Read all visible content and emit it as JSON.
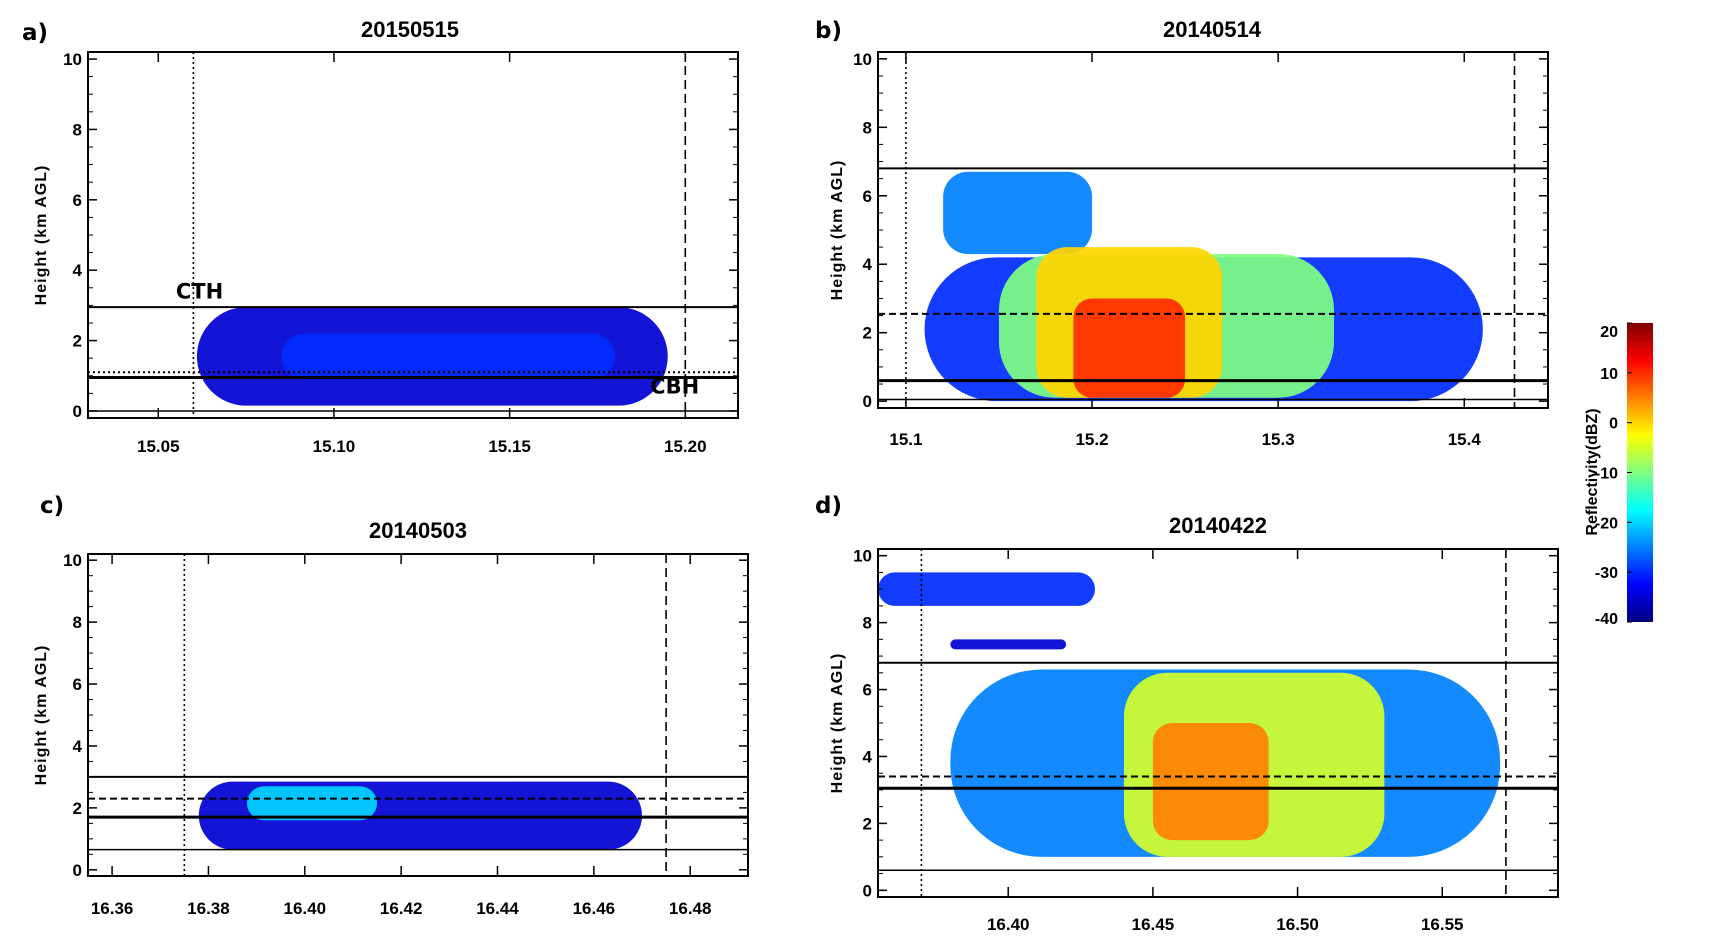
{
  "figure": {
    "colorbar": {
      "label": "Reflectivity(dBZ)",
      "ticks": [
        "20",
        "10",
        "0",
        "-10",
        "-20",
        "-30",
        "-40"
      ],
      "range": [
        -40,
        20
      ],
      "colormap": [
        "#00007f",
        "#0000ff",
        "#0080ff",
        "#00ffff",
        "#80ff80",
        "#ffff00",
        "#ff8000",
        "#ff0000",
        "#7f0000"
      ]
    }
  },
  "chart_data": [
    {
      "panel": "a)",
      "type": "heatmap",
      "title": "20150515",
      "ylabel": "Height (km AGL)",
      "xlabel": "",
      "xlim": [
        15.03,
        15.215
      ],
      "ylim": [
        -0.2,
        10.2
      ],
      "xticks": [
        "15.05",
        "15.10",
        "15.15",
        "15.20"
      ],
      "yticks": [
        "0",
        "2",
        "4",
        "6",
        "8",
        "10"
      ],
      "annotations": [
        {
          "text": "CTH",
          "x": 15.055,
          "y": 3.2
        },
        {
          "text": "CBH",
          "x": 15.19,
          "y": 0.5
        }
      ],
      "vlines": [
        {
          "x": 15.06,
          "style": "dotted"
        },
        {
          "x": 15.2,
          "style": "dashed"
        }
      ],
      "hlines": [
        {
          "y": 2.95,
          "style": "solid",
          "width": 2
        },
        {
          "y": 1.1,
          "style": "dotted",
          "width": 2
        },
        {
          "y": 0.95,
          "style": "solid",
          "width": 3
        },
        {
          "y": 0.0,
          "style": "solid",
          "width": 1.5
        }
      ],
      "clouds": [
        {
          "dbz": -35,
          "x0": 15.061,
          "x1": 15.195,
          "y0": 0.15,
          "y1": 2.95
        },
        {
          "dbz": -30,
          "x0": 15.085,
          "x1": 15.18,
          "y0": 0.9,
          "y1": 2.2
        }
      ]
    },
    {
      "panel": "b)",
      "type": "heatmap",
      "title": "20140514",
      "ylabel": "Height (km AGL)",
      "xlabel": "",
      "xlim": [
        15.085,
        15.445
      ],
      "ylim": [
        -0.2,
        10.2
      ],
      "xticks": [
        "15.1",
        "15.2",
        "15.3",
        "15.4"
      ],
      "yticks": [
        "0",
        "2",
        "4",
        "6",
        "8",
        "10"
      ],
      "annotations": [],
      "vlines": [
        {
          "x": 15.1,
          "style": "dotted"
        },
        {
          "x": 15.427,
          "style": "dashed"
        }
      ],
      "hlines": [
        {
          "y": 6.8,
          "style": "solid",
          "width": 2
        },
        {
          "y": 2.55,
          "style": "dashed",
          "width": 2
        },
        {
          "y": 0.6,
          "style": "solid",
          "width": 3
        },
        {
          "y": 0.05,
          "style": "solid",
          "width": 1.5
        }
      ],
      "clouds": [
        {
          "dbz": -30,
          "x0": 15.11,
          "x1": 15.41,
          "y0": 0.0,
          "y1": 4.2
        },
        {
          "dbz": -25,
          "x0": 15.12,
          "x1": 15.2,
          "y0": 4.3,
          "y1": 6.7
        },
        {
          "dbz": -10,
          "x0": 15.15,
          "x1": 15.33,
          "y0": 0.1,
          "y1": 4.3
        },
        {
          "dbz": 0,
          "x0": 15.17,
          "x1": 15.27,
          "y0": 0.1,
          "y1": 4.5
        },
        {
          "dbz": 10,
          "x0": 15.19,
          "x1": 15.25,
          "y0": 0.1,
          "y1": 3.0
        }
      ]
    },
    {
      "panel": "c)",
      "type": "heatmap",
      "title": "20140503",
      "ylabel": "Height (km AGL)",
      "xlabel": "",
      "xlim": [
        16.355,
        16.492
      ],
      "ylim": [
        -0.2,
        10.2
      ],
      "xticks": [
        "16.36",
        "16.38",
        "16.40",
        "16.42",
        "16.44",
        "16.46",
        "16.48"
      ],
      "yticks": [
        "0",
        "2",
        "4",
        "6",
        "8",
        "10"
      ],
      "annotations": [],
      "vlines": [
        {
          "x": 16.375,
          "style": "dotted"
        },
        {
          "x": 16.475,
          "style": "dashed"
        }
      ],
      "hlines": [
        {
          "y": 3.0,
          "style": "solid",
          "width": 2
        },
        {
          "y": 2.3,
          "style": "dashed",
          "width": 2
        },
        {
          "y": 1.7,
          "style": "solid",
          "width": 3
        },
        {
          "y": 0.65,
          "style": "solid",
          "width": 1.5
        }
      ],
      "clouds": [
        {
          "dbz": -35,
          "x0": 16.378,
          "x1": 16.47,
          "y0": 0.65,
          "y1": 2.85
        },
        {
          "dbz": -20,
          "x0": 16.388,
          "x1": 16.415,
          "y0": 1.6,
          "y1": 2.7
        }
      ]
    },
    {
      "panel": "d)",
      "type": "heatmap",
      "title": "20140422",
      "ylabel": "Height (km AGL)",
      "xlabel": "",
      "xlim": [
        16.355,
        16.59
      ],
      "ylim": [
        -0.2,
        10.2
      ],
      "xticks": [
        "16.40",
        "16.45",
        "16.50",
        "16.55"
      ],
      "yticks": [
        "0",
        "2",
        "4",
        "6",
        "8",
        "10"
      ],
      "annotations": [],
      "vlines": [
        {
          "x": 16.37,
          "style": "dotted"
        },
        {
          "x": 16.572,
          "style": "dashed"
        }
      ],
      "hlines": [
        {
          "y": 6.8,
          "style": "solid",
          "width": 2
        },
        {
          "y": 3.4,
          "style": "dashed",
          "width": 2
        },
        {
          "y": 3.05,
          "style": "solid",
          "width": 3
        },
        {
          "y": 0.6,
          "style": "solid",
          "width": 1.5
        }
      ],
      "clouds": [
        {
          "dbz": -30,
          "x0": 16.355,
          "x1": 16.43,
          "y0": 8.5,
          "y1": 9.5
        },
        {
          "dbz": -35,
          "x0": 16.38,
          "x1": 16.42,
          "y0": 7.2,
          "y1": 7.5
        },
        {
          "dbz": -25,
          "x0": 16.38,
          "x1": 16.57,
          "y0": 1.0,
          "y1": 6.6
        },
        {
          "dbz": -5,
          "x0": 16.44,
          "x1": 16.53,
          "y0": 1.0,
          "y1": 6.5
        },
        {
          "dbz": 5,
          "x0": 16.45,
          "x1": 16.49,
          "y0": 1.5,
          "y1": 5.0
        }
      ]
    }
  ]
}
